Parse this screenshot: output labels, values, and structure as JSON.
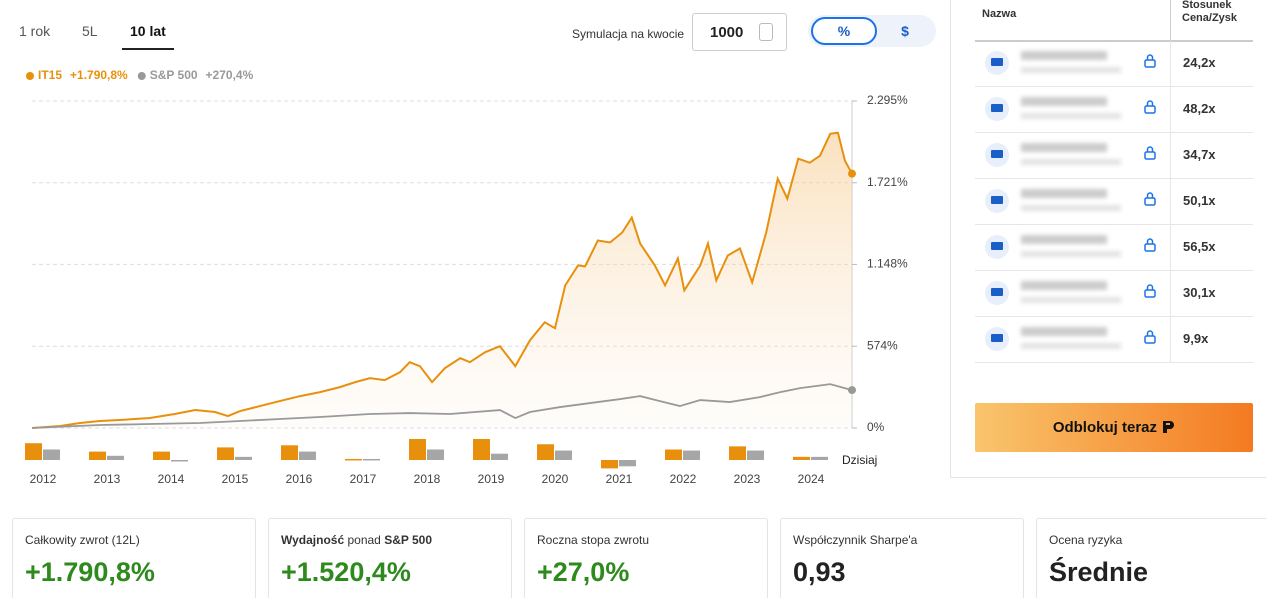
{
  "tabs": [
    "1 rok",
    "5L",
    "10 lat"
  ],
  "simulation": {
    "label": "Symulacja na kwocie",
    "amount": "1000"
  },
  "toggle": [
    "%",
    "$"
  ],
  "chart_data": {
    "type": "line",
    "xlim": [
      2011.83,
      2024.64
    ],
    "ylim": [
      0,
      2295
    ],
    "yticks": [
      {
        "value": 2295,
        "label": "2.295%"
      },
      {
        "value": 1721,
        "label": "1.721%"
      },
      {
        "value": 1148,
        "label": "1.148%"
      },
      {
        "value": 574,
        "label": "574%"
      },
      {
        "value": 0,
        "label": "0%"
      }
    ],
    "grid": true,
    "legend_position": "top-left",
    "series": [
      {
        "name": "IT15",
        "total": "+1.790,8%",
        "color": "#e8900c",
        "x": [
          2011.83,
          2012.27,
          2012.58,
          2012.89,
          2013.2,
          2013.67,
          2014.06,
          2014.38,
          2014.69,
          2014.89,
          2015.08,
          2015.39,
          2015.7,
          2016.02,
          2016.33,
          2016.64,
          2016.88,
          2017.11,
          2017.34,
          2017.58,
          2017.73,
          2017.89,
          2018.08,
          2018.28,
          2018.52,
          2018.67,
          2018.91,
          2019.14,
          2019.38,
          2019.61,
          2019.84,
          2020,
          2020.16,
          2020.36,
          2020.47,
          2020.67,
          2020.86,
          2021.05,
          2021.2,
          2021.33,
          2021.56,
          2021.72,
          2021.92,
          2022.02,
          2022.27,
          2022.39,
          2022.52,
          2022.7,
          2022.89,
          2023.08,
          2023.3,
          2023.48,
          2023.63,
          2023.8,
          2023.98,
          2024.14,
          2024.3,
          2024.42,
          2024.53,
          2024.64
        ],
        "values": [
          0,
          14,
          35,
          49,
          56,
          70,
          98,
          126,
          112,
          84,
          119,
          154,
          189,
          224,
          252,
          287,
          322,
          350,
          336,
          392,
          462,
          434,
          322,
          420,
          490,
          462,
          532,
          574,
          434,
          616,
          742,
          700,
          1001,
          1141,
          1134,
          1316,
          1302,
          1372,
          1477,
          1295,
          1141,
          1001,
          1190,
          966,
          1141,
          1295,
          1036,
          1211,
          1260,
          1022,
          1372,
          1750,
          1610,
          1890,
          1862,
          1911,
          2065,
          2072,
          1876,
          1785
        ]
      },
      {
        "name": "S&P 500",
        "total": "+270,4%",
        "color": "#999999",
        "x": [
          2011.83,
          2012.89,
          2013.67,
          2014.45,
          2015.08,
          2015.7,
          2016.33,
          2017.11,
          2017.73,
          2018.36,
          2019.14,
          2019.38,
          2019.61,
          2020.08,
          2020.55,
          2021.02,
          2021.33,
          2021.64,
          2021.95,
          2022.27,
          2022.73,
          2023.2,
          2023.52,
          2023.83,
          2024.3,
          2024.64
        ],
        "values": [
          0,
          21,
          28,
          35,
          49,
          63,
          77,
          98,
          105,
          98,
          126,
          70,
          112,
          147,
          175,
          203,
          224,
          189,
          154,
          196,
          182,
          217,
          252,
          280,
          308,
          266
        ]
      }
    ],
    "annual": {
      "categories": [
        "2012",
        "2013",
        "2014",
        "2015",
        "2016",
        "2017",
        "2018",
        "2019",
        "2020",
        "2021",
        "2022",
        "2023",
        "2024"
      ],
      "last_label": "Dzisiaj",
      "series": [
        {
          "name": "IT15",
          "color": "#e8900c",
          "values": [
            48,
            24,
            24,
            36,
            42,
            3,
            60,
            60,
            45,
            -24,
            30,
            39,
            9
          ]
        },
        {
          "name": "S&P 500",
          "color": "#a6a6a6",
          "values": [
            30,
            12,
            0,
            9,
            24,
            3,
            30,
            18,
            27,
            -18,
            27,
            27,
            9
          ]
        }
      ]
    }
  },
  "table": {
    "headers": [
      "Nazwa",
      "Stosunek Cena/Zysk"
    ],
    "rows": [
      "24,2x",
      "48,2x",
      "34,7x",
      "50,1x",
      "56,5x",
      "30,1x",
      "9,9x"
    ]
  },
  "unlock_button": "Odblokuj teraz",
  "cards": [
    {
      "label": "Całkowity zwrot (12L)",
      "value": "+1.790,8%"
    },
    {
      "label_parts": [
        "Wydajność",
        " ponad ",
        "S&P 500"
      ],
      "value": "+1.520,4%"
    },
    {
      "label": "Roczna stopa zwrotu",
      "value": "+27,0%"
    },
    {
      "label": "Współczynnik Sharpe'a",
      "value": "0,93"
    },
    {
      "label": "Ocena ryzyka",
      "value": "Średnie"
    }
  ]
}
